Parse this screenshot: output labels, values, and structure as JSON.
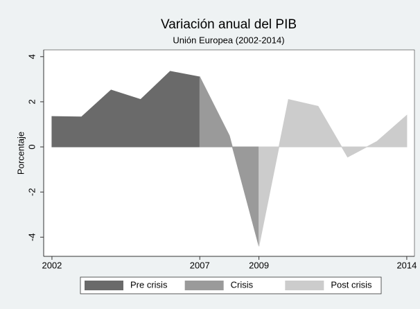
{
  "chart_data": {
    "type": "area",
    "title": "Variación anual del PIB",
    "subtitle": "Unión Europea (2002-2014)",
    "y_label": "Porcentaje",
    "x": [
      2002,
      2003,
      2004,
      2005,
      2006,
      2007,
      2008,
      2009,
      2010,
      2011,
      2012,
      2013,
      2014
    ],
    "series": [
      {
        "name": "Pre crisis",
        "color": "#6a6a6a",
        "values": [
          1.35,
          1.33,
          2.52,
          2.1,
          3.35,
          3.1,
          null,
          null,
          null,
          null,
          null,
          null,
          null
        ]
      },
      {
        "name": "Crisis",
        "color": "#9a9a9a",
        "values": [
          null,
          null,
          null,
          null,
          null,
          3.1,
          0.5,
          -4.4,
          null,
          null,
          null,
          null,
          null
        ]
      },
      {
        "name": "Post crisis",
        "color": "#cccccc",
        "values": [
          null,
          null,
          null,
          null,
          null,
          null,
          null,
          -4.4,
          2.1,
          1.8,
          -0.45,
          0.25,
          1.4
        ]
      }
    ],
    "xlim": [
      2001.72,
      2014.26
    ],
    "xticks": [
      2002,
      2007,
      2009,
      2014
    ],
    "ylim": [
      -4.85,
      4.3
    ],
    "yticks": [
      -4,
      -2,
      0,
      2,
      4
    ],
    "legend": "bottom"
  }
}
